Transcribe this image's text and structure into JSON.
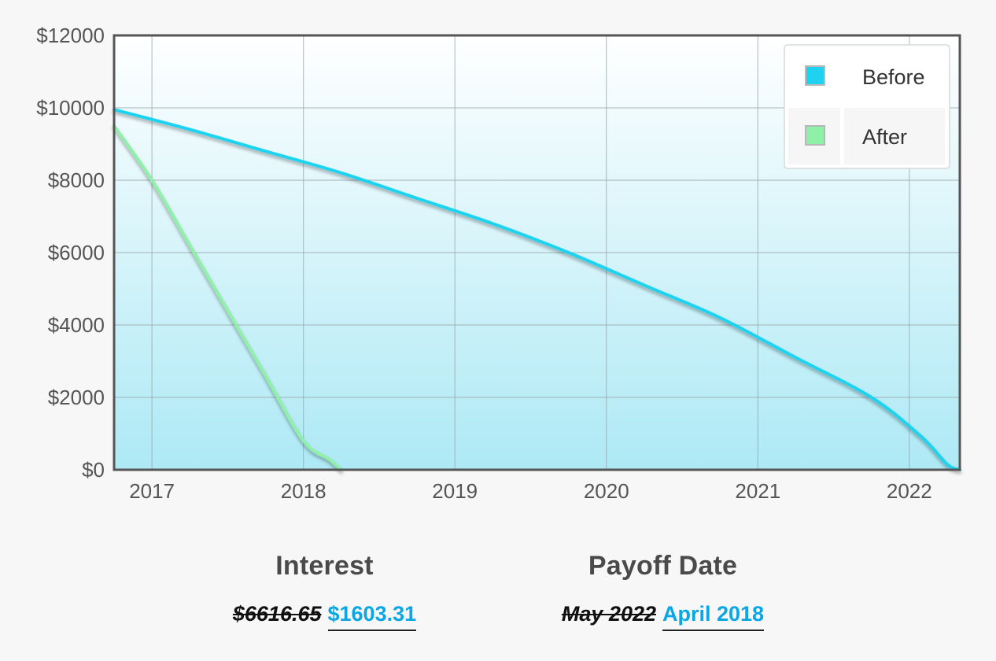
{
  "chart_data": {
    "type": "line",
    "xlim": [
      "2016-10",
      "2022-05"
    ],
    "ylim": [
      0,
      12000
    ],
    "y_ticks": [
      0,
      2000,
      4000,
      6000,
      8000,
      10000,
      12000
    ],
    "y_tick_labels": [
      "$0",
      "$2000",
      "$4000",
      "$6000",
      "$8000",
      "$10000",
      "$12000"
    ],
    "x_ticks": [
      "2017-01",
      "2018-01",
      "2019-01",
      "2020-01",
      "2021-01",
      "2022-01"
    ],
    "x_tick_labels": [
      "2017",
      "2018",
      "2019",
      "2020",
      "2021",
      "2022"
    ],
    "grid": true,
    "legend_position": "top-right",
    "series": [
      {
        "name": "Before",
        "color": "#1fd3f0",
        "points": [
          [
            "2016-10",
            9950
          ],
          [
            "2017-04",
            9400
          ],
          [
            "2017-10",
            8800
          ],
          [
            "2018-04",
            8200
          ],
          [
            "2018-10",
            7500
          ],
          [
            "2019-04",
            6800
          ],
          [
            "2019-10",
            6000
          ],
          [
            "2020-04",
            5100
          ],
          [
            "2020-10",
            4200
          ],
          [
            "2021-04",
            3100
          ],
          [
            "2021-10",
            2000
          ],
          [
            "2022-02",
            900
          ],
          [
            "2022-04",
            150
          ],
          [
            "2022-05",
            0
          ]
        ]
      },
      {
        "name": "After",
        "color": "#8ff0a8",
        "points": [
          [
            "2016-10",
            9500
          ],
          [
            "2017-01",
            8000
          ],
          [
            "2017-04",
            6200
          ],
          [
            "2017-07",
            4400
          ],
          [
            "2017-10",
            2600
          ],
          [
            "2018-01",
            800
          ],
          [
            "2018-03",
            300
          ],
          [
            "2018-04",
            0
          ]
        ]
      }
    ]
  },
  "summary": {
    "interest": {
      "label": "Interest",
      "before": "$6616.65",
      "after": "$1603.31"
    },
    "payoff": {
      "label": "Payoff Date",
      "before": "May 2022",
      "after": "April 2018"
    }
  }
}
